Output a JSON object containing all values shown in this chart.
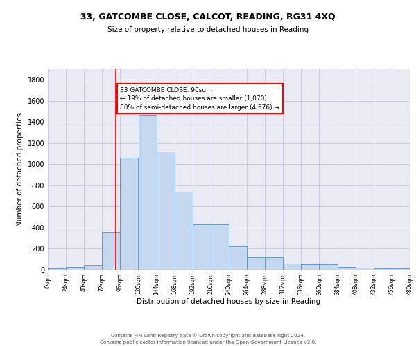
{
  "title_line1": "33, GATCOMBE CLOSE, CALCOT, READING, RG31 4XQ",
  "title_line2": "Size of property relative to detached houses in Reading",
  "xlabel": "Distribution of detached houses by size in Reading",
  "ylabel": "Number of detached properties",
  "bin_edges": [
    0,
    24,
    48,
    72,
    96,
    120,
    144,
    168,
    192,
    216,
    240,
    264,
    288,
    312,
    336,
    360,
    384,
    408,
    432,
    456,
    480
  ],
  "bar_heights": [
    10,
    28,
    48,
    360,
    1060,
    1470,
    1120,
    740,
    435,
    435,
    220,
    115,
    115,
    60,
    55,
    50,
    25,
    20,
    15,
    10
  ],
  "bar_color": "#c5d8f0",
  "bar_edge_color": "#5a8fc0",
  "vline_x": 90,
  "vline_color": "red",
  "annotation_text": "33 GATCOMBE CLOSE: 90sqm\n← 19% of detached houses are smaller (1,070)\n80% of semi-detached houses are larger (4,576) →",
  "annotation_box_color": "white",
  "annotation_box_edge_color": "red",
  "grid_color": "#c8c8dc",
  "background_color": "#eaeaf4",
  "ylim": [
    0,
    1900
  ],
  "yticks": [
    0,
    200,
    400,
    600,
    800,
    1000,
    1200,
    1400,
    1600,
    1800
  ],
  "footer_line1": "Contains HM Land Registry data © Crown copyright and database right 2024.",
  "footer_line2": "Contains public sector information licensed under the Open Government Licence v3.0.",
  "tick_labels": [
    "0sqm",
    "24sqm",
    "48sqm",
    "72sqm",
    "96sqm",
    "120sqm",
    "144sqm",
    "168sqm",
    "192sqm",
    "216sqm",
    "240sqm",
    "264sqm",
    "288sqm",
    "312sqm",
    "336sqm",
    "360sqm",
    "384sqm",
    "408sqm",
    "432sqm",
    "456sqm",
    "480sqm"
  ]
}
